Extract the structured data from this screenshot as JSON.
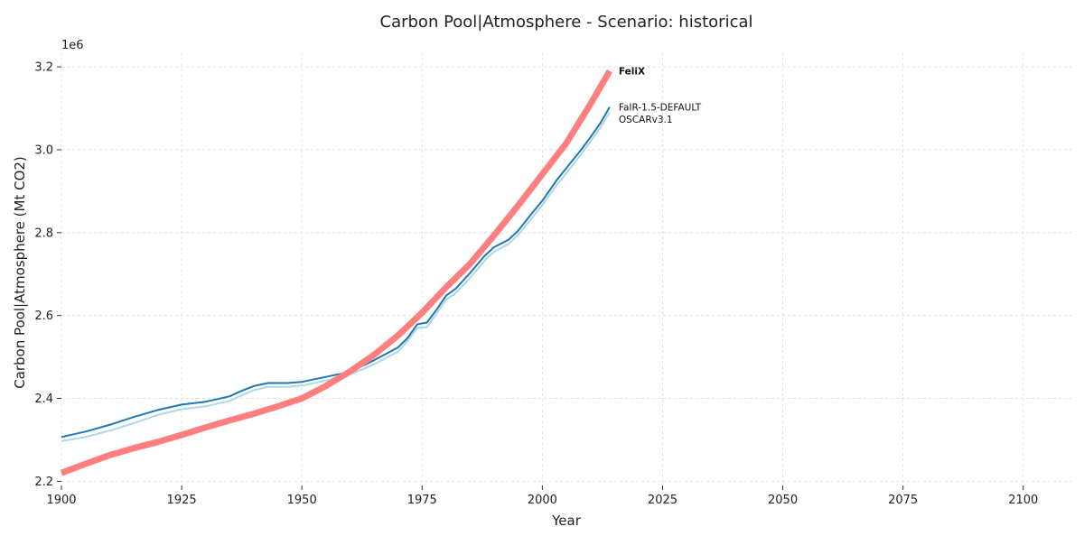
{
  "chart_data": {
    "type": "line",
    "title": "Carbon Pool|Atmosphere - Scenario: historical",
    "xlabel": "Year",
    "ylabel": "Carbon Pool|Atmosphere (Mt CO2)",
    "offset_label": "1e6",
    "xlim": [
      1900,
      2110
    ],
    "ylim": [
      2190000,
      3235000
    ],
    "x_ticks": [
      1900,
      1925,
      1950,
      1975,
      2000,
      2025,
      2050,
      2075,
      2100
    ],
    "y_ticks": [
      2200000,
      2400000,
      2600000,
      2800000,
      3000000,
      3200000
    ],
    "y_tick_labels": [
      "2.2",
      "2.4",
      "2.6",
      "2.8",
      "3.0",
      "3.2"
    ],
    "grid": true,
    "legend": "labels at line ends",
    "series": [
      {
        "name": "OSCARv3.1",
        "color": "#add8e6",
        "x": [
          1900,
          1905,
          1910,
          1915,
          1920,
          1925,
          1930,
          1935,
          1937,
          1940,
          1943,
          1947,
          1950,
          1955,
          1960,
          1965,
          1970,
          1972,
          1974,
          1976,
          1978,
          1980,
          1982,
          1985,
          1988,
          1990,
          1993,
          1995,
          1998,
          2000,
          2003,
          2005,
          2008,
          2010,
          2012,
          2014
        ],
        "y": [
          2297000,
          2307000,
          2322000,
          2340000,
          2360000,
          2374000,
          2381000,
          2394000,
          2405000,
          2420000,
          2428000,
          2428000,
          2431000,
          2443000,
          2458000,
          2482000,
          2513000,
          2539000,
          2570000,
          2572000,
          2605000,
          2639000,
          2654000,
          2691000,
          2732000,
          2754000,
          2773000,
          2795000,
          2837000,
          2867000,
          2915000,
          2944000,
          2988000,
          3020000,
          3052000,
          3091000
        ]
      },
      {
        "name": "FaIR-1.5-DEFAULT",
        "color": "#1f77b4",
        "x": [
          1900,
          1905,
          1910,
          1915,
          1920,
          1925,
          1930,
          1935,
          1937,
          1940,
          1943,
          1947,
          1950,
          1955,
          1960,
          1965,
          1970,
          1972,
          1974,
          1976,
          1978,
          1980,
          1982,
          1985,
          1988,
          1990,
          1993,
          1995,
          1998,
          2000,
          2003,
          2005,
          2008,
          2010,
          2012,
          2014
        ],
        "y": [
          2307000,
          2320000,
          2336000,
          2355000,
          2372000,
          2385000,
          2392000,
          2405000,
          2416000,
          2430000,
          2437000,
          2437000,
          2440000,
          2452000,
          2464000,
          2492000,
          2523000,
          2546000,
          2579000,
          2583000,
          2614000,
          2648000,
          2665000,
          2703000,
          2744000,
          2765000,
          2783000,
          2805000,
          2849000,
          2877000,
          2927000,
          2956000,
          2999000,
          3030000,
          3063000,
          3103000
        ]
      },
      {
        "name": "FeliX",
        "color": "#ff7f7f",
        "bold_label": true,
        "x": [
          1900,
          1905,
          1910,
          1915,
          1920,
          1925,
          1930,
          1935,
          1940,
          1945,
          1950,
          1955,
          1960,
          1965,
          1970,
          1975,
          1980,
          1985,
          1990,
          1995,
          2000,
          2005,
          2010,
          2014
        ],
        "y": [
          2220000,
          2242000,
          2263000,
          2280000,
          2295000,
          2312000,
          2330000,
          2347000,
          2363000,
          2381000,
          2400000,
          2430000,
          2465000,
          2505000,
          2552000,
          2607000,
          2668000,
          2725000,
          2794000,
          2866000,
          2941000,
          3016000,
          3110000,
          3190000
        ]
      }
    ]
  }
}
